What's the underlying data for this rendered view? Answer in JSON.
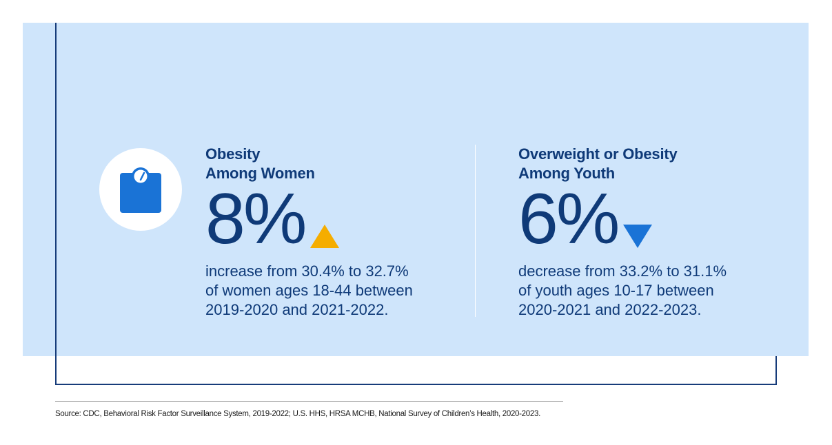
{
  "left_stat": {
    "title_line1": "Obesity",
    "title_line2": "Among Women",
    "value": "8%",
    "direction": "increase",
    "arrow_color": "#f5ad00",
    "icon": "weight-scale-icon",
    "desc_line1": "increase from 30.4% to 32.7%",
    "desc_line2": "of women ages 18-44 between",
    "desc_line3": "2019-2020 and 2021-2022."
  },
  "right_stat": {
    "title_line1": "Overweight or Obesity",
    "title_line2": "Among Youth",
    "value": "6%",
    "direction": "decrease",
    "arrow_color": "#1a73d6",
    "desc_line1": "decrease from 33.2% to 31.1%",
    "desc_line2": "of youth ages 10-17 between",
    "desc_line3": "2020-2021 and 2022-2023."
  },
  "colors": {
    "panel": "#cfe5fb",
    "text": "#0f3a78",
    "frame": "#173c7a",
    "icon_blue": "#1a73d6"
  },
  "source": "Source: CDC, Behavioral Risk Factor Surveillance System, 2019-2022; U.S. HHS, HRSA MCHB, National Survey of Children’s Health, 2020-2023."
}
